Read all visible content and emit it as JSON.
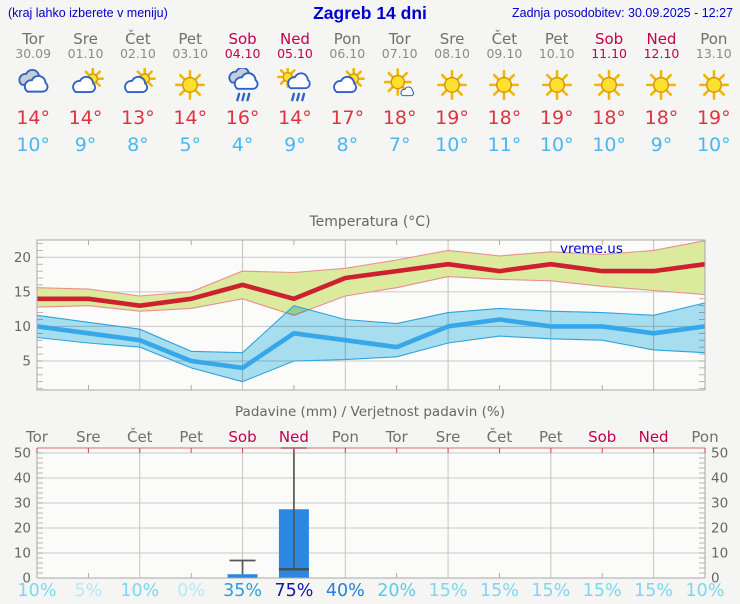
{
  "header": {
    "hint": "(kraj lahko izberete v meniju)",
    "title": "Zagreb 14 dni",
    "updated": "Zadnja posodobitev: 30.09.2025 - 12:27"
  },
  "watermark": "vreme.us",
  "days": [
    {
      "name": "Tor",
      "date": "30.09",
      "weekend": false,
      "icon": "cloudy",
      "high": "14°",
      "low": "10°",
      "pop": "10%",
      "pop_color": "#7fd6f2"
    },
    {
      "name": "Sre",
      "date": "01.10",
      "weekend": false,
      "icon": "sun-cloud",
      "high": "14°",
      "low": "9°",
      "pop": "5%",
      "pop_color": "#b5e9f8"
    },
    {
      "name": "Čet",
      "date": "02.10",
      "weekend": false,
      "icon": "sun-cloud",
      "high": "13°",
      "low": "8°",
      "pop": "10%",
      "pop_color": "#7fd6f2"
    },
    {
      "name": "Pet",
      "date": "03.10",
      "weekend": false,
      "icon": "sun",
      "high": "14°",
      "low": "5°",
      "pop": "0%",
      "pop_color": "#b5e9f8"
    },
    {
      "name": "Sob",
      "date": "04.10",
      "weekend": true,
      "icon": "rain",
      "high": "16°",
      "low": "4°",
      "pop": "35%",
      "pop_color": "#2f9ce2"
    },
    {
      "name": "Ned",
      "date": "05.10",
      "weekend": true,
      "icon": "sun-rain",
      "high": "14°",
      "low": "9°",
      "pop": "75%",
      "pop_color": "#1813a8"
    },
    {
      "name": "Pon",
      "date": "06.10",
      "weekend": false,
      "icon": "sun-cloud",
      "high": "17°",
      "low": "8°",
      "pop": "40%",
      "pop_color": "#2480da"
    },
    {
      "name": "Tor",
      "date": "07.10",
      "weekend": false,
      "icon": "sun-small-cloud",
      "high": "18°",
      "low": "7°",
      "pop": "20%",
      "pop_color": "#5ec9ef"
    },
    {
      "name": "Sre",
      "date": "08.10",
      "weekend": false,
      "icon": "sun",
      "high": "19°",
      "low": "10°",
      "pop": "15%",
      "pop_color": "#7fd6f2"
    },
    {
      "name": "Čet",
      "date": "09.10",
      "weekend": false,
      "icon": "sun",
      "high": "18°",
      "low": "11°",
      "pop": "15%",
      "pop_color": "#7fd6f2"
    },
    {
      "name": "Pet",
      "date": "10.10",
      "weekend": false,
      "icon": "sun",
      "high": "19°",
      "low": "10°",
      "pop": "15%",
      "pop_color": "#7fd6f2"
    },
    {
      "name": "Sob",
      "date": "11.10",
      "weekend": true,
      "icon": "sun",
      "high": "18°",
      "low": "10°",
      "pop": "15%",
      "pop_color": "#7fd6f2"
    },
    {
      "name": "Ned",
      "date": "12.10",
      "weekend": true,
      "icon": "sun",
      "high": "18°",
      "low": "9°",
      "pop": "15%",
      "pop_color": "#7fd6f2"
    },
    {
      "name": "Pon",
      "date": "13.10",
      "weekend": false,
      "icon": "sun",
      "high": "19°",
      "low": "10°",
      "pop": "10%",
      "pop_color": "#7fd6f2"
    }
  ],
  "temp_chart": {
    "type": "line",
    "title": "Temperatura (°C)",
    "y_ticks": [
      5,
      10,
      15,
      20
    ],
    "y_min": 0.8,
    "y_max": 22.5,
    "max_line": [
      14,
      14,
      13,
      14,
      16,
      14,
      17,
      18,
      19,
      18,
      19,
      18,
      18,
      19
    ],
    "max_band_hi": [
      15.6,
      15.4,
      14.4,
      15.0,
      18.0,
      17.8,
      18.4,
      19.6,
      21.0,
      20.2,
      20.8,
      20.4,
      21.0,
      22.4
    ],
    "max_band_lo": [
      12.8,
      13.0,
      12.2,
      12.6,
      14.0,
      11.6,
      14.4,
      15.6,
      17.2,
      16.8,
      16.6,
      15.8,
      15.2,
      14.6
    ],
    "min_line": [
      10,
      9,
      8,
      5,
      4,
      9,
      8,
      7,
      10,
      11,
      10,
      10,
      9,
      10
    ],
    "min_band_hi": [
      11.6,
      10.6,
      9.6,
      6.4,
      6.2,
      13.0,
      11.0,
      10.4,
      12.0,
      12.6,
      12.2,
      12.0,
      11.6,
      13.4
    ],
    "min_band_lo": [
      8.4,
      7.6,
      7.0,
      4.0,
      2.0,
      5.0,
      5.2,
      5.6,
      7.6,
      8.6,
      8.2,
      8.0,
      6.6,
      6.2
    ],
    "colors": {
      "max_line": "#cd2130",
      "max_band": "#dcea9e",
      "max_band_edge": "#e89090",
      "min_line": "#36a7e8",
      "min_band": "#a9e1f4",
      "min_band_edge": "#2fa3dc"
    }
  },
  "precip_chart": {
    "type": "bar",
    "title": "Padavine (mm) / Verjetnost padavin (%)",
    "y_ticks": [
      0,
      10,
      20,
      30,
      40,
      50
    ],
    "y_top": 52,
    "bar_color": "#2b87e2",
    "whisker_color": "#565656",
    "bars": [
      {
        "day_index": 4,
        "amount_mm": 1.5,
        "median_mm": null,
        "whisker_mm": 7
      },
      {
        "day_index": 5,
        "amount_mm": 27.5,
        "median_mm": 3.5,
        "whisker_mm": 52
      }
    ],
    "pop_values": [
      "10%",
      "5%",
      "10%",
      "0%",
      "35%",
      "75%",
      "40%",
      "20%",
      "15%",
      "15%",
      "15%",
      "15%",
      "15%",
      "10%"
    ]
  },
  "style": {
    "weekend_color": "#c2004e",
    "weekday_color": "#6f6f6f",
    "grid_color": "#c9c9c9",
    "plot_bg": "#fbfbfa",
    "plot_border": "#a8a8a8",
    "precip_top_border": "#e08888"
  }
}
